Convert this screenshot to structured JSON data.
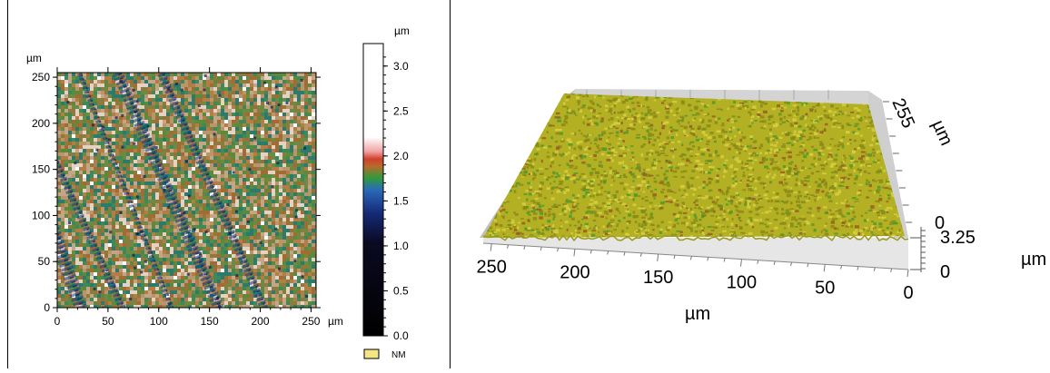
{
  "chart_data": [
    {
      "type": "heatmap",
      "title": "",
      "x_unit": "µm",
      "y_unit": "µm",
      "x_ticks": [
        0,
        50,
        100,
        150,
        200,
        250
      ],
      "y_ticks": [
        0,
        50,
        100,
        150,
        200,
        250
      ],
      "xlim": [
        0,
        255
      ],
      "ylim": [
        0,
        255
      ],
      "colorbar": {
        "unit": "µm",
        "ticks": [
          "0.0",
          "0.5",
          "1.0",
          "1.5",
          "2.0",
          "2.5",
          "3.0"
        ],
        "range": [
          0,
          3.25
        ],
        "colors": [
          "#000000",
          "#0a1240",
          "#2a6ab8",
          "#2f9b3c",
          "#b86a2c",
          "#e05040",
          "#ffffff"
        ]
      },
      "legend": [
        {
          "label": "NM",
          "color": "#f4e682"
        }
      ],
      "features": {
        "dark_blue_diagonal_streaks": 5
      }
    },
    {
      "type": "surface-3d",
      "x_unit": "µm",
      "z_unit": "µm",
      "x_ticks": [
        250,
        200,
        150,
        100,
        50,
        0
      ],
      "y_ticks": [
        "255",
        "0"
      ],
      "z_ticks": [
        "3.25",
        "0"
      ],
      "surface_colors": [
        "#8a8a18",
        "#b9b624",
        "#d8d040",
        "#4d9a2c",
        "#9a5a24"
      ]
    }
  ]
}
